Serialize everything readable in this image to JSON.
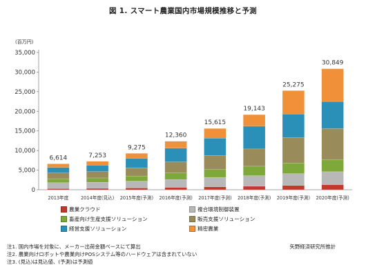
{
  "title": "図 1. スマート農業国内市場規模推移と予測",
  "unit_label": "(百万円)",
  "colors": {
    "農業クラウド": "#c0392b",
    "複合環境制御装置": "#b8b8b8",
    "畜産向け生産支援ソリューション": "#7fa83a",
    "販売支援ソリューション": "#9a8c5a",
    "経営支援ソリューション": "#2a90b8",
    "精密農業": "#f0913a"
  },
  "legend": [
    {
      "label": "農業クラウド"
    },
    {
      "label": "複合環境制御装置"
    },
    {
      "label": "畜産向け生産支援ソリューション"
    },
    {
      "label": "販売支援ソリューション"
    },
    {
      "label": "経営支援ソリューション"
    },
    {
      "label": "精密農業"
    }
  ],
  "notes": [
    "注1. 国内市場を対象に、メーカー出荷金額ベースにて算出",
    "注2. 農業向けロボットや農業向けPOSシステム等のハードウェアは含まれていない",
    "注3. (見込)は見込値、(予測)は予測値"
  ],
  "source": "矢野経済研究所推計",
  "chart_data": {
    "type": "bar",
    "stacked": true,
    "categories": [
      "2013年度",
      "2014年度(見込)",
      "2015年度(予測)",
      "2016年度(予測)",
      "2017年度(予測)",
      "2018年度(予測)",
      "2019年度(予測)",
      "2020年度(予測)"
    ],
    "totals": [
      6614,
      7253,
      9275,
      12360,
      15615,
      19143,
      25275,
      30849
    ],
    "total_labels": [
      "6,614",
      "7,253",
      "9,275",
      "12,360",
      "15,615",
      "19,143",
      "25,275",
      "30,849"
    ],
    "series": [
      {
        "name": "農業クラウド",
        "values": [
          300,
          350,
          450,
          600,
          750,
          900,
          1100,
          1300
        ]
      },
      {
        "name": "複合環境制御装置",
        "values": [
          1500,
          1550,
          1750,
          2000,
          2400,
          2700,
          3000,
          3300
        ]
      },
      {
        "name": "畜産向け生産支援ソリューション",
        "values": [
          1000,
          1100,
          1300,
          1700,
          2000,
          2400,
          2700,
          3000
        ]
      },
      {
        "name": "販売支援ソリューション",
        "values": [
          1500,
          1650,
          2100,
          2800,
          3600,
          4400,
          6500,
          8000
        ]
      },
      {
        "name": "経営支援ソリューション",
        "values": [
          1400,
          1600,
          2400,
          3500,
          4400,
          5800,
          6000,
          6900
        ]
      },
      {
        "name": "精密農業",
        "values": [
          914,
          1003,
          1275,
          1760,
          2465,
          2943,
          5975,
          8349
        ]
      }
    ],
    "ylim": [
      0,
      35000
    ],
    "yticks": [
      0,
      5000,
      10000,
      15000,
      20000,
      25000,
      30000,
      35000
    ],
    "ytick_labels": [
      "0",
      "5,000",
      "10,000",
      "15,000",
      "20,000",
      "25,000",
      "30,000",
      "35,000"
    ],
    "grid": false,
    "legend_position": "bottom"
  }
}
